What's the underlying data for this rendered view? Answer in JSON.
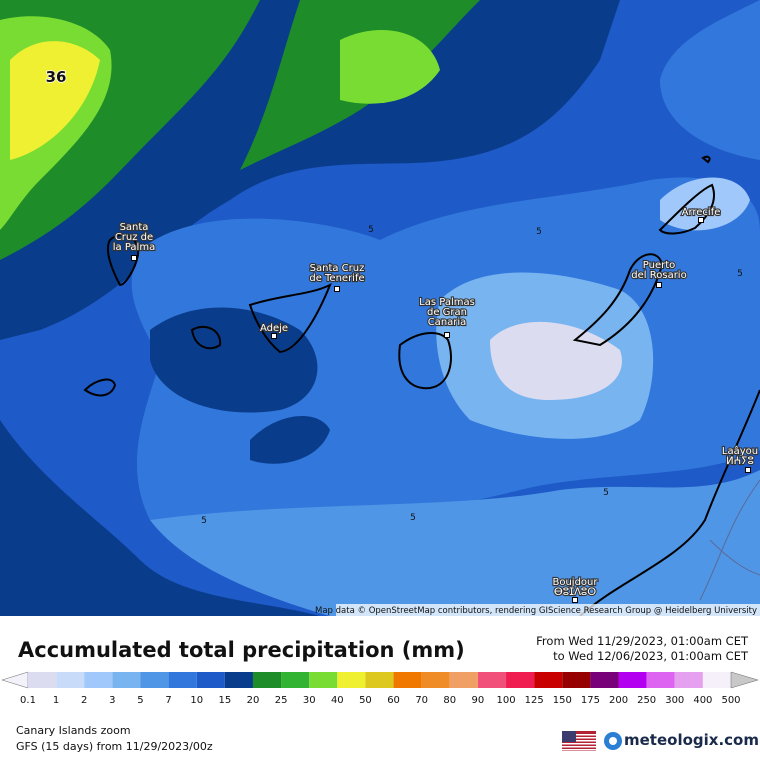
{
  "map": {
    "max_label": "36",
    "attribution": "Map data © OpenStreetMap contributors, rendering GIScience Research Group @ Heidelberg University",
    "places": [
      {
        "lines": [
          "Santa",
          "Cruz de",
          "la Palma"
        ]
      },
      {
        "lines": [
          "Santa Cruz",
          "de Tenerife"
        ]
      },
      {
        "lines": [
          "Adeje"
        ]
      },
      {
        "lines": [
          "Las Palmas",
          "de Gran",
          "Canaria"
        ]
      },
      {
        "lines": [
          "Puerto",
          "del Rosario"
        ]
      },
      {
        "lines": [
          "Arrecife"
        ]
      },
      {
        "lines": [
          "Laâyou",
          "ⵍⵄⵢⵓ"
        ]
      },
      {
        "lines": [
          "Boujdour",
          "ⴱⵓⵊⴷⵓⵔ"
        ]
      }
    ],
    "contour_labels": [
      "5",
      "5",
      "5",
      "5",
      "5",
      "5"
    ]
  },
  "panel": {
    "title": "Accumulated total precipitation (mm)",
    "date_from": "From Wed 11/29/2023, 01:00am CET",
    "date_to": "to Wed 12/06/2023, 01:00am CET",
    "region": "Canary Islands zoom",
    "model": "GFS (15 days) from 11/29/2023/00z",
    "brand": "meteologix.com",
    "legend": {
      "labels": [
        "0.1",
        "1",
        "2",
        "3",
        "5",
        "7",
        "10",
        "15",
        "20",
        "25",
        "30",
        "40",
        "50",
        "60",
        "70",
        "80",
        "90",
        "100",
        "125",
        "150",
        "175",
        "200",
        "250",
        "300",
        "400",
        "500"
      ],
      "colors": [
        "#f2f2fa",
        "#dcdcf0",
        "#c8dcfa",
        "#a0c8fa",
        "#78b4f0",
        "#5096e6",
        "#3278dc",
        "#1e5ac8",
        "#0a3c8c",
        "#1e8c28",
        "#32b432",
        "#78dc32",
        "#f0f032",
        "#dcc81e",
        "#f07800",
        "#f08c28",
        "#f0a064",
        "#f0507a",
        "#f01e50",
        "#c80000",
        "#960000",
        "#780078",
        "#b400f0",
        "#dc64f0",
        "#e6a0f0",
        "#f5f0fa",
        "#c8c8c8",
        "#a0a0a0"
      ]
    }
  }
}
